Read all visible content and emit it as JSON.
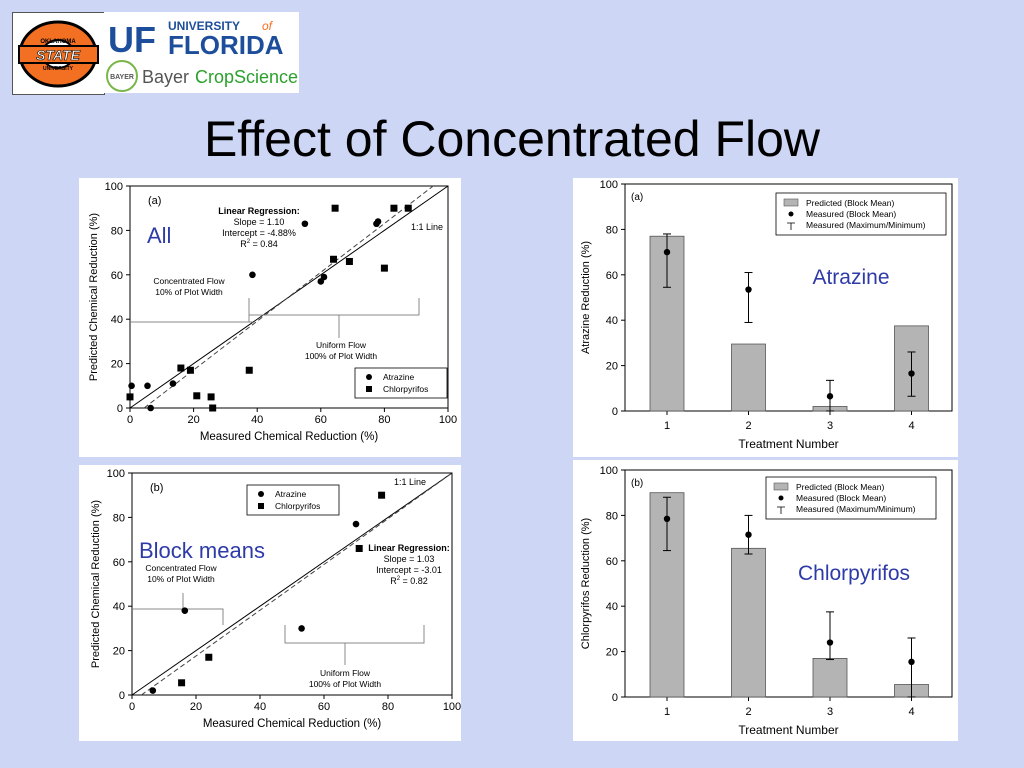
{
  "title": "Effect of Concentrated Flow",
  "logos": {
    "osu": {
      "top": "OKLAHOMA",
      "main": "STATE",
      "bottom": "UNIVERSITY"
    },
    "uf": {
      "mark": "UF",
      "university": "UNIVERSITY",
      "of": "of",
      "florida": "FLORIDA"
    },
    "bayer": {
      "seal": "BAYER",
      "name": "Bayer",
      "division": "CropScience"
    }
  },
  "colors": {
    "slide_bg": "#cdd6f4",
    "blue_label": "#2e3aa8",
    "bar_fill": "#b4b4b4"
  },
  "chart_data": [
    {
      "id": "scatter_a",
      "type": "scatter",
      "panel_letter": "(a)",
      "overlay_label": "All",
      "xlabel": "Measured Chemical Reduction (%)",
      "ylabel": "Predicted Chemical Reduction (%)",
      "xlim": [
        0,
        100
      ],
      "ylim": [
        0,
        100
      ],
      "xticks": [
        "0",
        "20",
        "40",
        "60",
        "80",
        "100"
      ],
      "yticks": [
        "0",
        "20",
        "40",
        "60",
        "80",
        "100"
      ],
      "one_to_one_label": "1:1 Line",
      "regression": {
        "heading": "Linear Regression:",
        "slope": "Slope = 1.10",
        "intercept": "Intercept = -4.88%",
        "r2_prefix": "R",
        "r2_exp": "2",
        "r2_value": "=  0.84",
        "slope_value": 1.1,
        "intercept_value": -4.88
      },
      "concentrated_label": [
        "Concentrated Flow",
        "10% of Plot Width"
      ],
      "uniform_label": [
        "Uniform Flow",
        "100% of Plot Width"
      ],
      "legend": [
        "Atrazine",
        "Chlorpyrifos"
      ],
      "series": [
        {
          "name": "Atrazine",
          "marker": "circle",
          "points": [
            [
              0.5,
              10
            ],
            [
              5.5,
              10
            ],
            [
              6.5,
              0
            ],
            [
              13.5,
              11
            ],
            [
              38.5,
              60
            ],
            [
              60,
              57
            ],
            [
              61,
              59
            ],
            [
              55,
              83
            ],
            [
              77.5,
              83
            ],
            [
              78,
              84
            ]
          ]
        },
        {
          "name": "Chlorpyrifos",
          "marker": "square",
          "points": [
            [
              0,
              5
            ],
            [
              16,
              18
            ],
            [
              19,
              17
            ],
            [
              21,
              5.5
            ],
            [
              25.5,
              5
            ],
            [
              26,
              0
            ],
            [
              37.5,
              17
            ],
            [
              64,
              67
            ],
            [
              69,
              66
            ],
            [
              64.5,
              90
            ],
            [
              80,
              63
            ],
            [
              83,
              90
            ],
            [
              87.5,
              90
            ]
          ]
        }
      ]
    },
    {
      "id": "scatter_b",
      "type": "scatter",
      "panel_letter": "(b)",
      "overlay_label": "Block means",
      "xlabel": "Measured Chemical Reduction (%)",
      "ylabel": "Predicted Chemical Reduction (%)",
      "xlim": [
        0,
        100
      ],
      "ylim": [
        0,
        100
      ],
      "xticks": [
        "0",
        "20",
        "40",
        "60",
        "80",
        "100"
      ],
      "yticks": [
        "0",
        "20",
        "40",
        "60",
        "80",
        "100"
      ],
      "one_to_one_label": "1:1 Line",
      "regression": {
        "heading": "Linear Regression:",
        "slope": "Slope = 1.03",
        "intercept": "Intercept = -3.01",
        "r2_prefix": "R",
        "r2_exp": "2",
        "r2_value": "=  0.82",
        "slope_value": 1.03,
        "intercept_value": -3.01
      },
      "concentrated_label": [
        "Concentrated Flow",
        "10% of Plot Width"
      ],
      "uniform_label": [
        "Uniform Flow",
        "100% of Plot Width"
      ],
      "legend": [
        "Atrazine",
        "Chlorpyrifos"
      ],
      "series": [
        {
          "name": "Atrazine",
          "marker": "circle",
          "points": [
            [
              6.5,
              2
            ],
            [
              16.5,
              38
            ],
            [
              53,
              30
            ],
            [
              70,
              77
            ]
          ]
        },
        {
          "name": "Chlorpyrifos",
          "marker": "square",
          "points": [
            [
              15.5,
              5.5
            ],
            [
              24,
              17
            ],
            [
              71,
              66
            ],
            [
              78,
              90
            ]
          ]
        }
      ]
    },
    {
      "id": "bar_a",
      "type": "bar",
      "panel_letter": "(a)",
      "overlay_label": "Atrazine",
      "xlabel": "Treatment Number",
      "ylabel": "Atrazine Reduction (%)",
      "ylim": [
        0,
        100
      ],
      "categories": [
        "1",
        "2",
        "3",
        "4"
      ],
      "yticks": [
        "0",
        "20",
        "40",
        "60",
        "80",
        "100"
      ],
      "legend": [
        "Predicted (Block Mean)",
        "Measured (Block Mean)",
        "Measured (Maximum/Minimum)"
      ],
      "predicted": [
        77,
        29.5,
        2,
        37.5
      ],
      "measured": [
        70,
        53.5,
        6.5,
        16.5
      ],
      "measured_max": [
        78,
        61,
        13.5,
        26
      ],
      "measured_min": [
        54.5,
        39,
        0,
        6.5
      ]
    },
    {
      "id": "bar_b",
      "type": "bar",
      "panel_letter": "(b)",
      "overlay_label": "Chlorpyrifos",
      "xlabel": "Treatment Number",
      "ylabel": "Chlorpyrifos Reduction (%)",
      "ylim": [
        0,
        100
      ],
      "categories": [
        "1",
        "2",
        "3",
        "4"
      ],
      "yticks": [
        "0",
        "20",
        "40",
        "60",
        "80",
        "100"
      ],
      "legend": [
        "Predicted (Block Mean)",
        "Measured (Block Mean)",
        "Measured (Maximum/Minimum)"
      ],
      "predicted": [
        90,
        65.5,
        17,
        5.5
      ],
      "measured": [
        78.5,
        71.5,
        24,
        15.5
      ],
      "measured_max": [
        88,
        80,
        37.5,
        26
      ],
      "measured_min": [
        64.5,
        63,
        16.5,
        0
      ]
    }
  ]
}
